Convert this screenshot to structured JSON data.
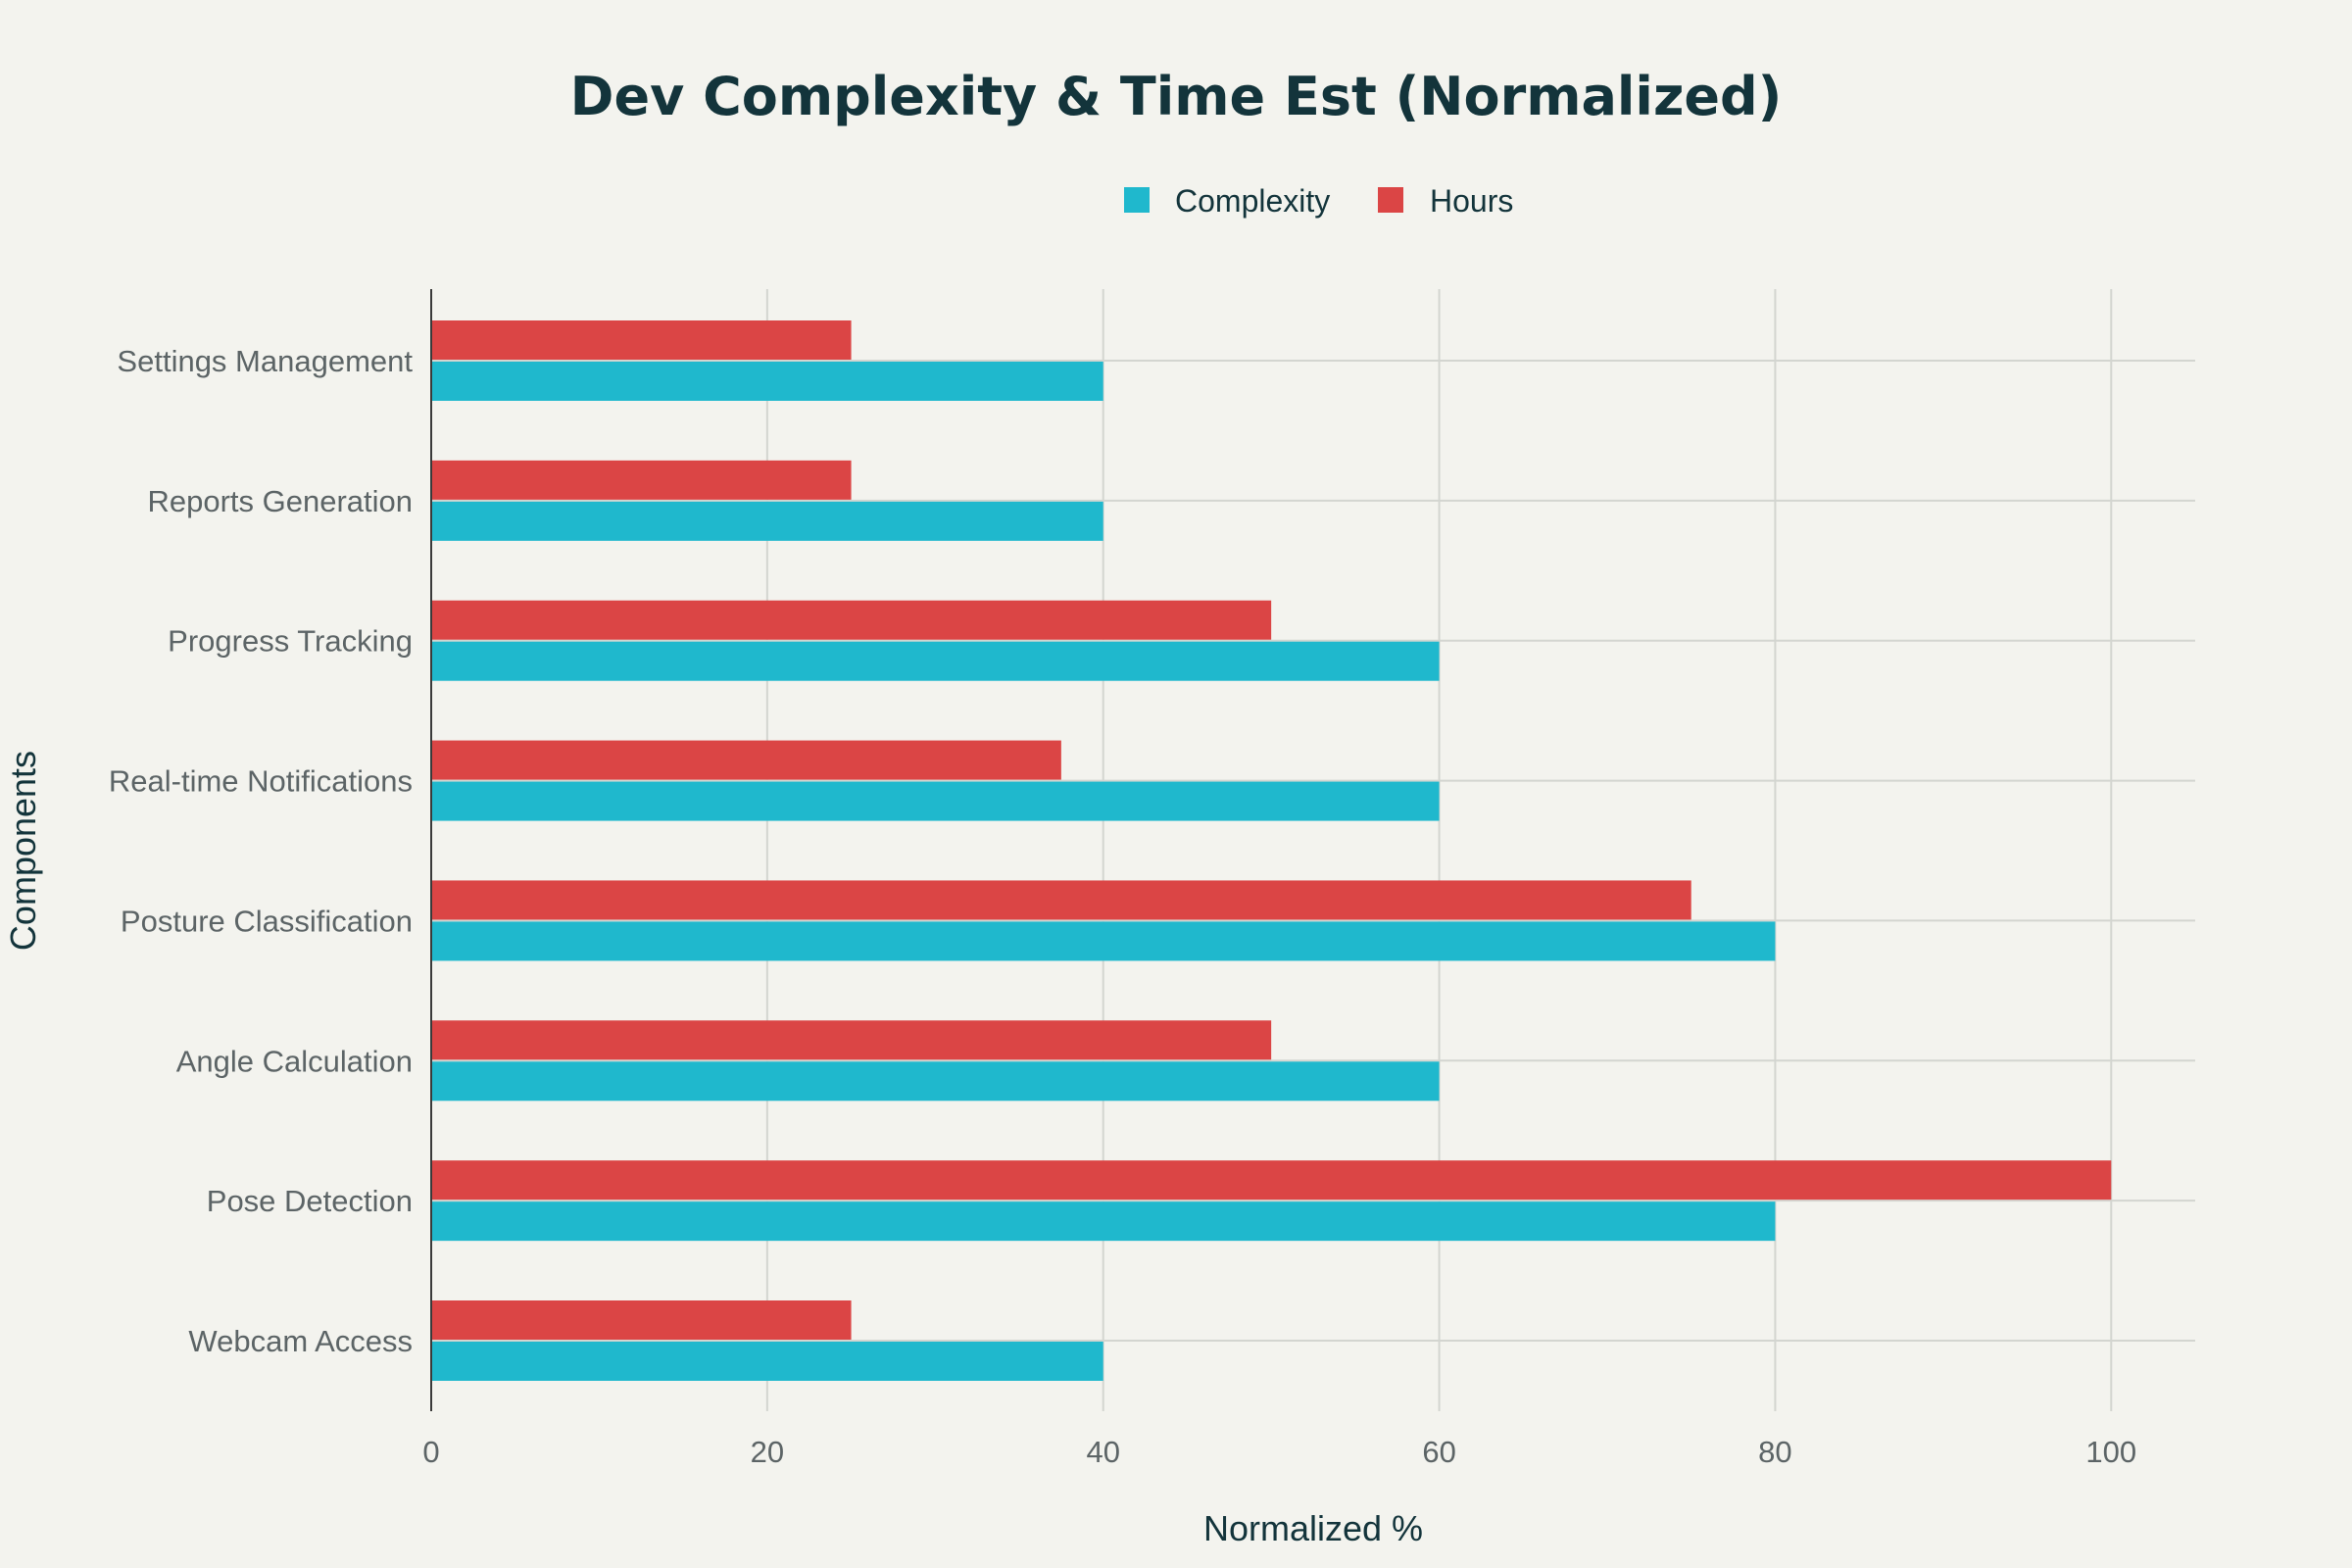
{
  "chart_data": {
    "type": "bar",
    "orientation": "horizontal",
    "title": "Dev Complexity & Time Est (Normalized)",
    "xlabel": "Normalized %",
    "ylabel": "Components",
    "xlim": [
      0,
      105
    ],
    "xticks": [
      0,
      20,
      40,
      60,
      80,
      100
    ],
    "grid": true,
    "legend_position": "top-center",
    "categories": [
      "Webcam Access",
      "Pose Detection",
      "Angle Calculation",
      "Posture Classification",
      "Real-time Notifications",
      "Progress Tracking",
      "Reports Generation",
      "Settings Management"
    ],
    "series": [
      {
        "name": "Complexity",
        "color": "#1fb8cd",
        "values": [
          40,
          80,
          60,
          80,
          60,
          60,
          40,
          40
        ]
      },
      {
        "name": "Hours",
        "color": "#db4545",
        "values": [
          25,
          100,
          50,
          75,
          37.5,
          50,
          25,
          25
        ]
      }
    ]
  }
}
